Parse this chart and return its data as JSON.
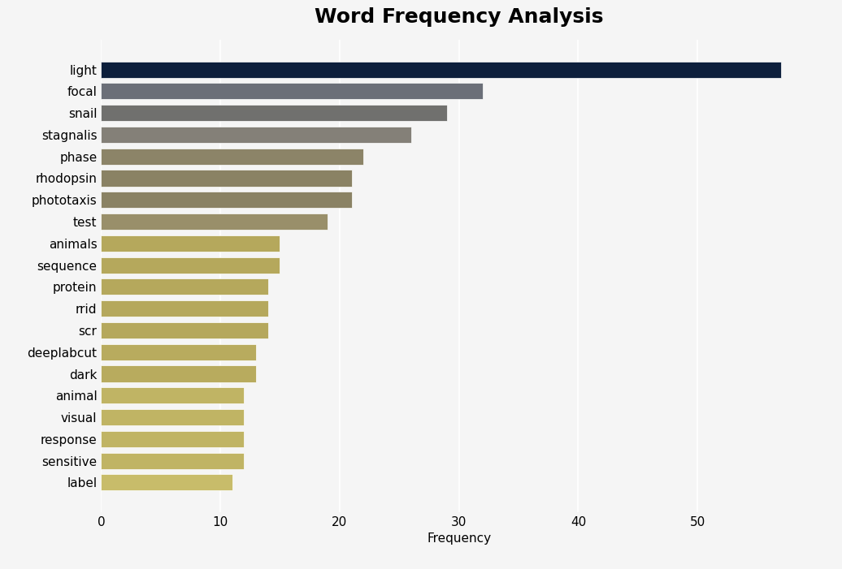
{
  "title": "Word Frequency Analysis",
  "xlabel": "Frequency",
  "categories": [
    "light",
    "focal",
    "snail",
    "stagnalis",
    "phase",
    "rhodopsin",
    "phototaxis",
    "test",
    "animals",
    "sequence",
    "protein",
    "rrid",
    "scr",
    "deeplabcut",
    "dark",
    "animal",
    "visual",
    "response",
    "sensitive",
    "label"
  ],
  "values": [
    57,
    32,
    29,
    26,
    22,
    21,
    21,
    19,
    15,
    15,
    14,
    14,
    14,
    13,
    13,
    12,
    12,
    12,
    12,
    11
  ],
  "colors": [
    "#0d1f3c",
    "#6b6f78",
    "#70706e",
    "#848078",
    "#8c8468",
    "#8a8264",
    "#8a8264",
    "#998f6a",
    "#b5a85c",
    "#b5a85c",
    "#b5a85c",
    "#b5a85c",
    "#b5a85c",
    "#b8ab5e",
    "#b8ab5e",
    "#c0b464",
    "#c0b464",
    "#c0b464",
    "#c0b464",
    "#c8bc6a"
  ],
  "bg_color": "#f5f5f5",
  "plot_bg_color": "#f5f5f5",
  "title_fontsize": 18,
  "label_fontsize": 11,
  "tick_fontsize": 11,
  "xlim": [
    0,
    60
  ],
  "xticks": [
    0,
    10,
    20,
    30,
    40,
    50
  ]
}
